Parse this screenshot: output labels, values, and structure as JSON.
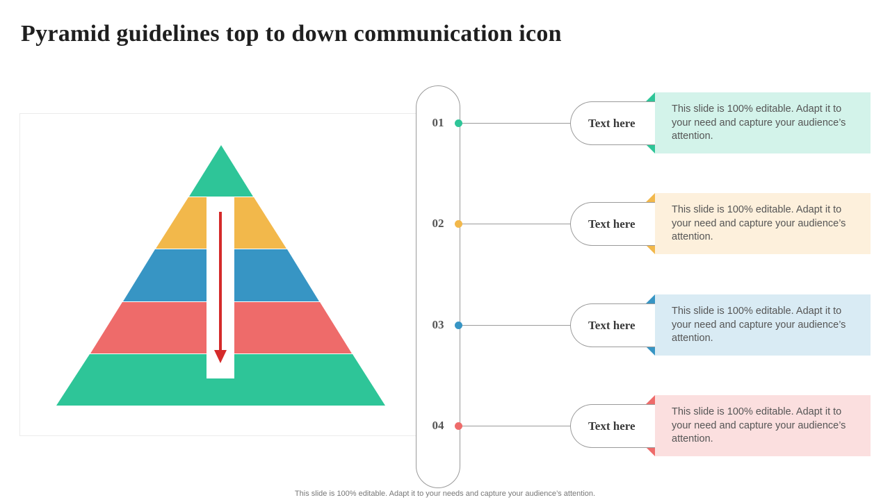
{
  "title": "Pyramid guidelines top to down communication icon",
  "colors": {
    "green": "#2ec598",
    "yellow": "#f2b84b",
    "blue": "#3795c4",
    "red": "#ee6b6a",
    "arrow": "#d52a2a"
  },
  "pyramid": {
    "layer_colors": [
      "#2ec598",
      "#f2b84b",
      "#3795c4",
      "#ee6b6a",
      "#2ec598"
    ],
    "arrow_direction": "down"
  },
  "steps": [
    {
      "number": "01",
      "label": "Text here",
      "description": "This slide is 100% editable. Adapt it to your need and capture your audience’s attention.",
      "dot_color": "#2ec598",
      "card_color": "#d3f3ea",
      "fold_color": "#2ec598"
    },
    {
      "number": "02",
      "label": "Text here",
      "description": "This slide is 100% editable. Adapt it to your need and capture your audience’s attention.",
      "dot_color": "#f2b84b",
      "card_color": "#fdf0dc",
      "fold_color": "#f2b84b"
    },
    {
      "number": "03",
      "label": "Text here",
      "description": "This slide is 100% editable. Adapt it to your need and capture your audience’s attention.",
      "dot_color": "#3795c4",
      "card_color": "#d9ebf4",
      "fold_color": "#3795c4"
    },
    {
      "number": "04",
      "label": "Text here",
      "description": "This slide is 100% editable. Adapt it to your need and capture your audience’s attention.",
      "dot_color": "#ee6b6a",
      "card_color": "#fbdfdf",
      "fold_color": "#ee6b6a"
    }
  ],
  "footer": "This slide is 100% editable. Adapt it to your needs and capture your audience’s attention."
}
